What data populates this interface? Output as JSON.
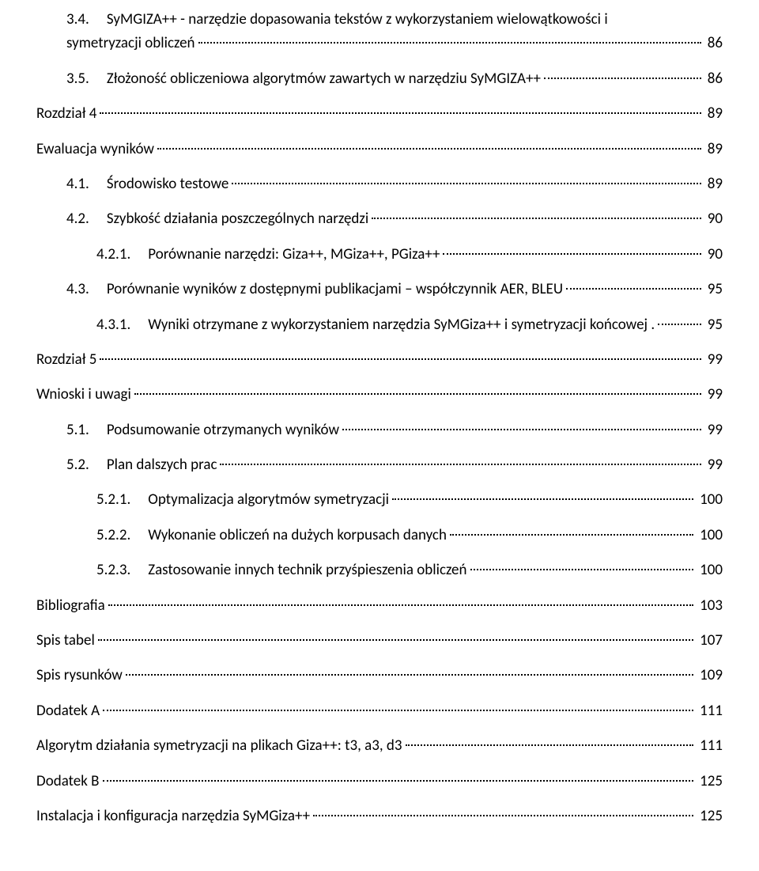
{
  "entries": [
    {
      "indent": 1,
      "num": "3.4.",
      "title": "SyMGIZA++ - narzędzie dopasowania tekstów z wykorzystaniem wielowątkowości i symetryzacji obliczeń",
      "page": "86",
      "wrap": true
    },
    {
      "indent": 1,
      "num": "3.5.",
      "title": "Złożoność obliczeniowa algorytmów zawartych w narzędziu SyMGIZA++",
      "page": "86"
    },
    {
      "indent": 0,
      "num": "",
      "title": "Rozdział 4",
      "page": "89"
    },
    {
      "indent": 0,
      "num": "",
      "title": "Ewaluacja wyników",
      "page": "89"
    },
    {
      "indent": 1,
      "num": "4.1.",
      "title": "Środowisko testowe",
      "page": "89"
    },
    {
      "indent": 1,
      "num": "4.2.",
      "title": "Szybkość działania poszczególnych narzędzi",
      "page": "90"
    },
    {
      "indent": 2,
      "num": "4.2.1.",
      "title": "Porównanie narzędzi: Giza++, MGiza++, PGiza++",
      "page": "90"
    },
    {
      "indent": 1,
      "num": "4.3.",
      "title": "Porównanie wyników z dostępnymi publikacjami – współczynnik AER, BLEU",
      "page": "95"
    },
    {
      "indent": 2,
      "num": "4.3.1.",
      "title": "Wyniki otrzymane z wykorzystaniem narzędzia SyMGiza++ i symetryzacji końcowej .",
      "page": "95",
      "tightLeader": true
    },
    {
      "indent": 0,
      "num": "",
      "title": "Rozdział 5",
      "page": "99"
    },
    {
      "indent": 0,
      "num": "",
      "title": "Wnioski i uwagi",
      "page": "99"
    },
    {
      "indent": 1,
      "num": "5.1.",
      "title": "Podsumowanie otrzymanych wyników",
      "page": "99"
    },
    {
      "indent": 1,
      "num": "5.2.",
      "title": "Plan dalszych prac",
      "page": "99"
    },
    {
      "indent": 2,
      "num": "5.2.1.",
      "title": "Optymalizacja algorytmów symetryzacji",
      "page": "100"
    },
    {
      "indent": 2,
      "num": "5.2.2.",
      "title": "Wykonanie obliczeń na dużych korpusach danych",
      "page": "100"
    },
    {
      "indent": 2,
      "num": "5.2.3.",
      "title": "Zastosowanie innych technik przyśpieszenia obliczeń",
      "page": "100"
    },
    {
      "indent": 0,
      "num": "",
      "title": "Bibliografia",
      "page": "103"
    },
    {
      "indent": 0,
      "num": "",
      "title": "Spis tabel",
      "page": "107"
    },
    {
      "indent": 0,
      "num": "",
      "title": "Spis rysunków",
      "page": "109"
    },
    {
      "indent": 0,
      "num": "",
      "title": "Dodatek A",
      "page": "111"
    },
    {
      "indent": 0,
      "num": "",
      "title": "Algorytm działania symetryzacji na plikach Giza++: t3, a3, d3",
      "page": "111"
    },
    {
      "indent": 0,
      "num": "",
      "title": "Dodatek B",
      "page": "125"
    },
    {
      "indent": 0,
      "num": "",
      "title": "Instalacja i konfiguracja narzędzia SyMGiza++",
      "page": "125"
    }
  ]
}
